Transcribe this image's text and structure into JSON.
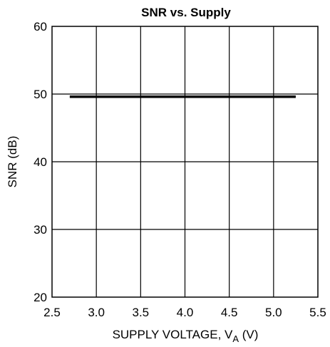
{
  "chart_data": {
    "type": "line",
    "title": "SNR vs. Supply",
    "xlabel": "SUPPLY VOLTAGE, V",
    "xlabel_sub": "A",
    "xlabel_unit": " (V)",
    "ylabel": "SNR (dB)",
    "xlim": [
      2.5,
      5.5
    ],
    "ylim": [
      20,
      60
    ],
    "xticks": [
      "2.5",
      "3.0",
      "3.5",
      "4.0",
      "4.5",
      "5.0",
      "5.5"
    ],
    "yticks": [
      "20",
      "30",
      "40",
      "50",
      "60"
    ],
    "grid": true,
    "series": [
      {
        "x": [
          2.7,
          5.25
        ],
        "y": [
          49.6,
          49.6
        ]
      }
    ]
  }
}
